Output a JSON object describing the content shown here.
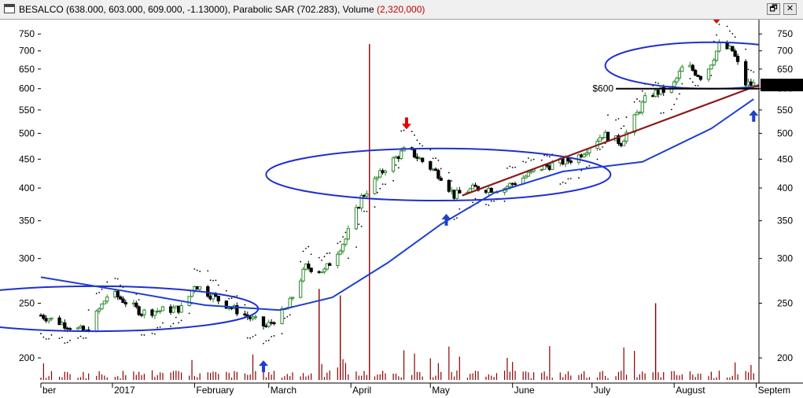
{
  "window": {
    "symbol": "BESALCO",
    "ohlc": "(638.000, 603.000, 609.000, -1.13000)",
    "indicator": "Parabolic SAR (702.283)",
    "volume_label": "Volume",
    "volume_value": "(2,320,000)",
    "restore_glyph": "🗗",
    "close_glyph": "✕"
  },
  "chart_data": {
    "type": "candlestick",
    "y_ticks": [
      200,
      250,
      300,
      350,
      400,
      450,
      500,
      550,
      600,
      650,
      700,
      750
    ],
    "y_scale": "log",
    "ylim": [
      190,
      790
    ],
    "last_price": "609.000",
    "price_line_label": "$600",
    "price_line_value": 600,
    "question_mark": "?",
    "months": [
      "ber",
      "2017",
      "February",
      "March",
      "April",
      "May",
      "June",
      "July",
      "August",
      "Septem"
    ],
    "start_date": "2016-12-05",
    "end_date": "2017-09-02",
    "colors": {
      "up": "#2e8b2e",
      "down": "#000000",
      "sar": "#000000",
      "volume": "#8b0000",
      "ellipse": "#1f2fd0",
      "trendline": "#8b1a1a",
      "curve": "#1f3fd0",
      "arrow_up": "#1f3fd0",
      "arrow_down": "#e00000",
      "price_tag": "#000000"
    },
    "ellipses": [
      {
        "cx": "2016-12-25",
        "cy": 240,
        "rx_days": 62,
        "ry_price_top": 268,
        "ry_price_bottom": 223
      },
      {
        "cx": "2017-05-04",
        "cy": 415,
        "rx_days": 65,
        "ry_price_top": 470,
        "ry_price_bottom": 380
      },
      {
        "cx": "2017-08-15",
        "cy": 660,
        "rx_days": 40,
        "ry_price_top": 725,
        "ry_price_bottom": 600
      }
    ],
    "down_arrows": [
      {
        "date": "2017-04-22",
        "price": 510
      },
      {
        "date": "2017-08-17",
        "price": 785
      }
    ],
    "up_arrows": [
      {
        "date": "2017-02-27",
        "price": 198
      },
      {
        "date": "2017-05-07",
        "price": 360
      },
      {
        "date": "2017-08-31",
        "price": 550
      }
    ],
    "trendline": [
      {
        "date": "2017-05-13",
        "price": 388
      },
      {
        "date": "2017-09-04",
        "price": 614
      }
    ],
    "curve_points": [
      {
        "date": "2016-12-05",
        "price": 278
      },
      {
        "date": "2017-01-05",
        "price": 263
      },
      {
        "date": "2017-02-05",
        "price": 248
      },
      {
        "date": "2017-03-05",
        "price": 243
      },
      {
        "date": "2017-03-25",
        "price": 256
      },
      {
        "date": "2017-04-15",
        "price": 295
      },
      {
        "date": "2017-05-05",
        "price": 345
      },
      {
        "date": "2017-05-25",
        "price": 392
      },
      {
        "date": "2017-06-20",
        "price": 428
      },
      {
        "date": "2017-07-20",
        "price": 445
      },
      {
        "date": "2017-08-15",
        "price": 510
      },
      {
        "date": "2017-08-31",
        "price": 575
      }
    ],
    "price_waypoints": [
      [
        "2016-12-05",
        238
      ],
      [
        "2016-12-22",
        222
      ],
      [
        "2016-12-31",
        262
      ],
      [
        "2017-01-12",
        241
      ],
      [
        "2017-01-28",
        245
      ],
      [
        "2017-02-01",
        270
      ],
      [
        "2017-02-12",
        250
      ],
      [
        "2017-02-28",
        227
      ],
      [
        "2017-03-08",
        245
      ],
      [
        "2017-03-15",
        290
      ],
      [
        "2017-03-22",
        285
      ],
      [
        "2017-03-30",
        325
      ],
      [
        "2017-04-05",
        385
      ],
      [
        "2017-04-15",
        440
      ],
      [
        "2017-04-22",
        470
      ],
      [
        "2017-05-05",
        420
      ],
      [
        "2017-05-10",
        388
      ],
      [
        "2017-05-18",
        400
      ],
      [
        "2017-05-28",
        398
      ],
      [
        "2017-06-12",
        435
      ],
      [
        "2017-06-25",
        452
      ],
      [
        "2017-07-05",
        498
      ],
      [
        "2017-07-12",
        482
      ],
      [
        "2017-07-22",
        585
      ],
      [
        "2017-07-31",
        600
      ],
      [
        "2017-08-05",
        665
      ],
      [
        "2017-08-12",
        625
      ],
      [
        "2017-08-18",
        715
      ],
      [
        "2017-08-23",
        700
      ],
      [
        "2017-08-28",
        612
      ],
      [
        "2017-09-01",
        609
      ]
    ],
    "volume_spikes": [
      [
        "2017-04-08",
        720
      ],
      [
        "2017-03-20",
        265
      ],
      [
        "2017-03-28",
        258
      ],
      [
        "2017-07-25",
        250
      ]
    ]
  }
}
